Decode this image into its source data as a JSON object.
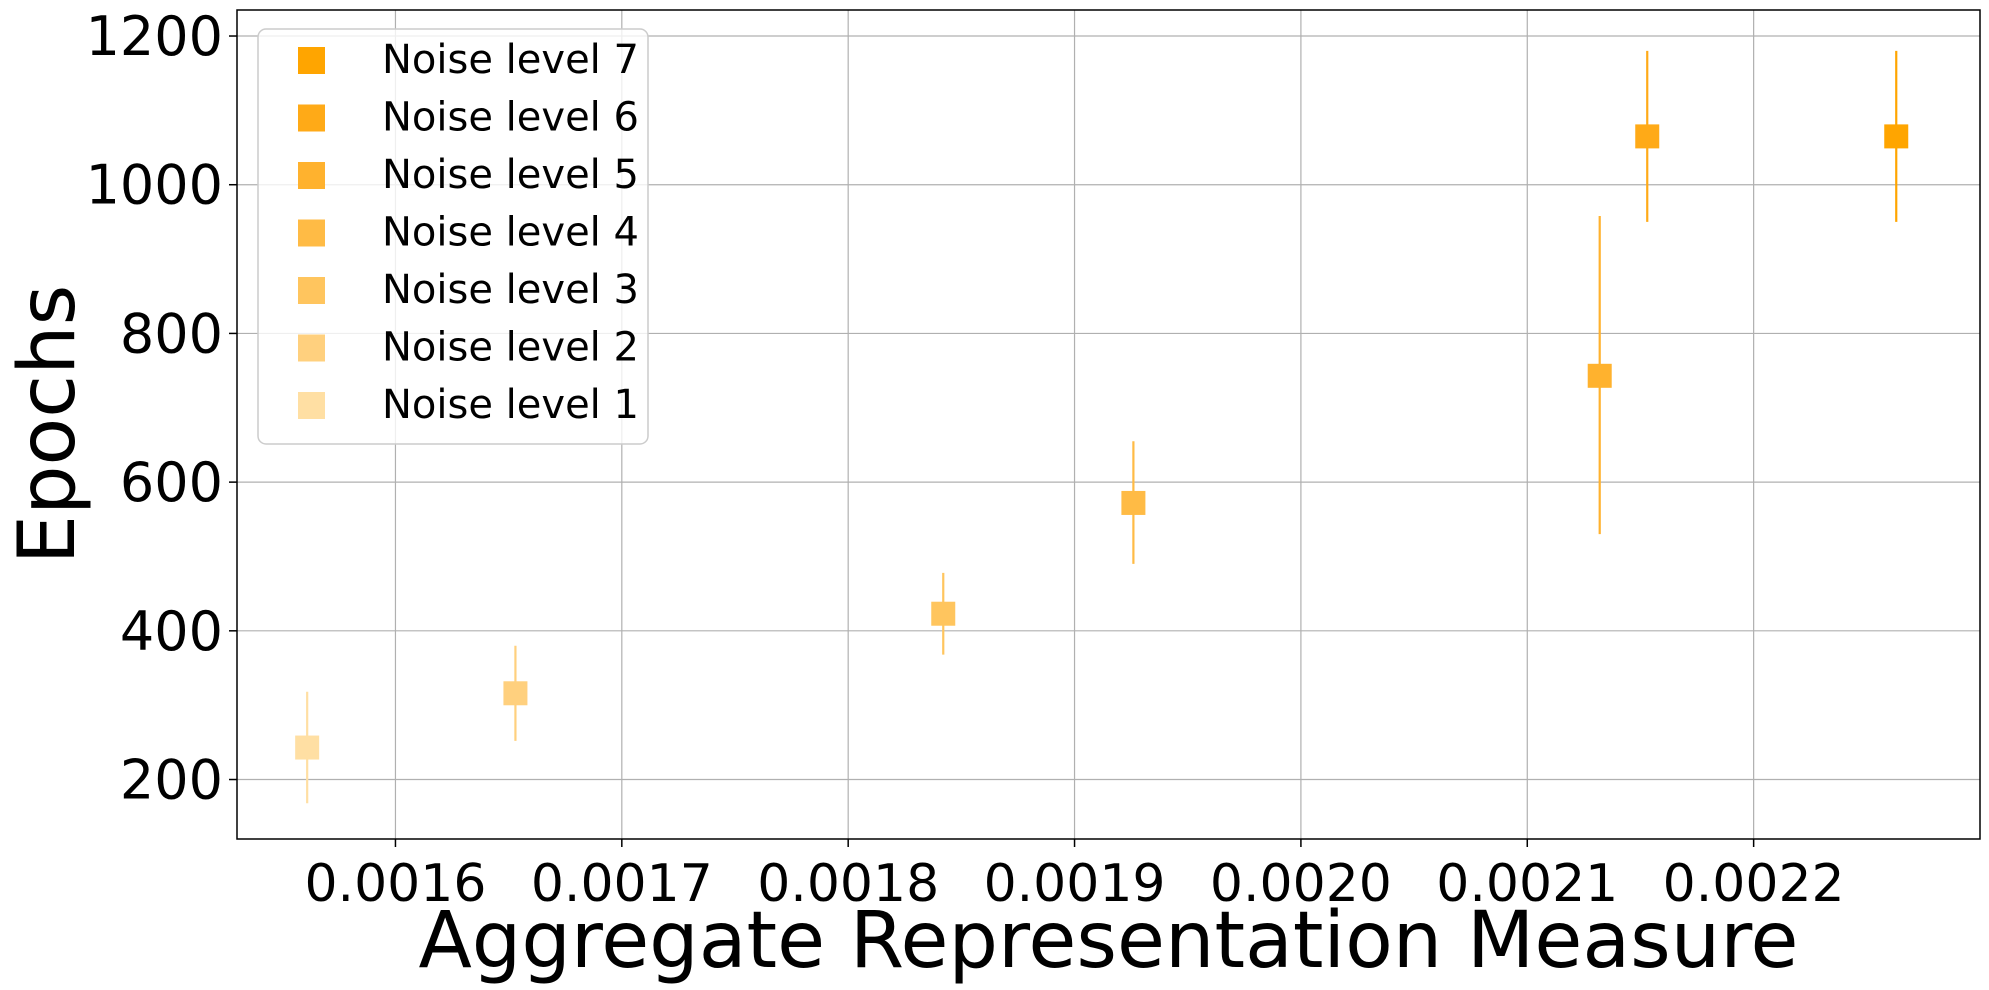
{
  "chart_data": {
    "type": "scatter",
    "title": "",
    "xlabel": "Aggregate Representation Measure",
    "ylabel": "Epochs",
    "xlim": [
      0.00153,
      0.0023
    ],
    "ylim": [
      120,
      1235
    ],
    "x_ticks": [
      "0.0016",
      "0.0017",
      "0.0018",
      "0.0019",
      "0.0020",
      "0.0021",
      "0.0022"
    ],
    "y_ticks": [
      "200",
      "400",
      "600",
      "800",
      "1000",
      "1200"
    ],
    "grid": true,
    "legend_position": "top-left",
    "marker": "square",
    "series": [
      {
        "name": "Noise level 7",
        "color": "#ffa500",
        "x": 0.002263,
        "y": 1065,
        "err_low": 950,
        "err_high": 1180
      },
      {
        "name": "Noise level 6",
        "color": "#ffaa17",
        "x": 0.002153,
        "y": 1065,
        "err_low": 950,
        "err_high": 1180
      },
      {
        "name": "Noise level 5",
        "color": "#ffb22e",
        "x": 0.002132,
        "y": 743,
        "err_low": 530,
        "err_high": 958
      },
      {
        "name": "Noise level 4",
        "color": "#ffbb45",
        "x": 0.001926,
        "y": 572,
        "err_low": 490,
        "err_high": 655
      },
      {
        "name": "Noise level 3",
        "color": "#ffc55e",
        "x": 0.001842,
        "y": 423,
        "err_low": 368,
        "err_high": 478
      },
      {
        "name": "Noise level 2",
        "color": "#ffd07e",
        "x": 0.001653,
        "y": 316,
        "err_low": 252,
        "err_high": 380
      },
      {
        "name": "Noise level 1",
        "color": "#ffdfa3",
        "x": 0.001561,
        "y": 243,
        "err_low": 168,
        "err_high": 318
      }
    ]
  }
}
